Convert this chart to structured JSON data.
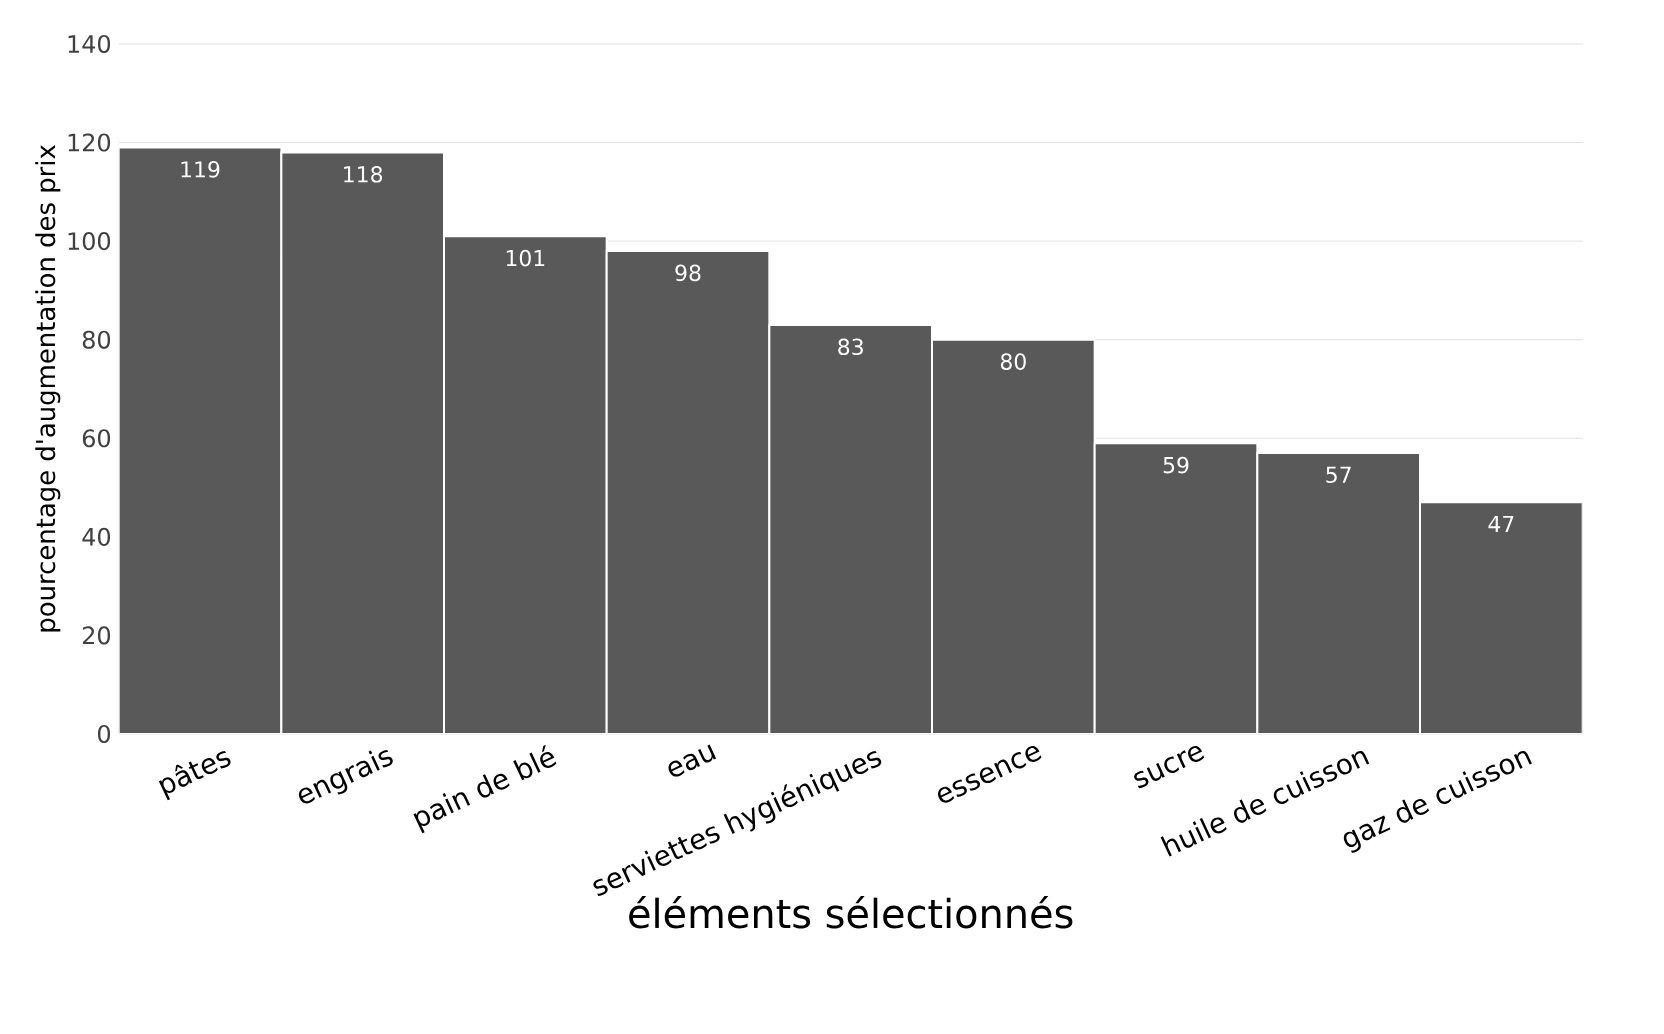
{
  "chart_data": {
    "type": "bar",
    "xlabel": "éléments sélectionnés",
    "ylabel": "pourcentage d'augmentation des prix",
    "categories": [
      "pâtes",
      "engrais",
      "pain de blé",
      "eau",
      "serviettes hygiéniques",
      "essence",
      "sucre",
      "huile de cuisson",
      "gaz de cuisson"
    ],
    "values": [
      119,
      118,
      101,
      98,
      83,
      80,
      59,
      57,
      47
    ],
    "color": "#595959",
    "ylim": [
      0,
      140
    ],
    "yticks": [
      0,
      20,
      40,
      60,
      80,
      100,
      120,
      140
    ],
    "grid": "y",
    "data_labels": true
  }
}
